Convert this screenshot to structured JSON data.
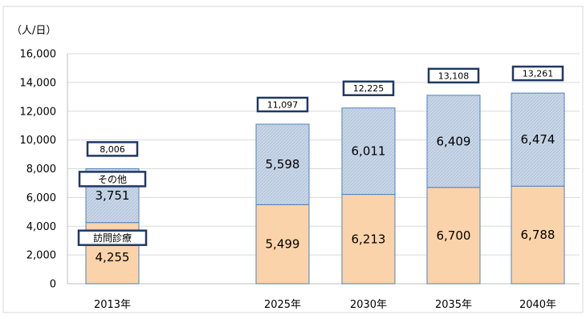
{
  "chart_data": {
    "type": "bar",
    "stacked": true,
    "unit_label": "（人/日）",
    "categories": [
      "2013年",
      "2025年",
      "2030年",
      "2035年",
      "2040年"
    ],
    "series": [
      {
        "name": "訪問診療",
        "values": [
          4255,
          5499,
          6213,
          6700,
          6788
        ],
        "value_labels": [
          "4,255",
          "5,499",
          "6,213",
          "6,700",
          "6,788"
        ],
        "color": "#fbd3aa"
      },
      {
        "name": "その他",
        "values": [
          3751,
          5598,
          6011,
          6409,
          6474
        ],
        "value_labels": [
          "3,751",
          "5,598",
          "6,011",
          "6,409",
          "6,474"
        ],
        "color": "#c6d5e6"
      }
    ],
    "totals": [
      8006,
      11097,
      12225,
      13108,
      13261
    ],
    "total_labels": [
      "8,006",
      "11,097",
      "12,225",
      "13,108",
      "13,261"
    ],
    "ylim": [
      0,
      16000
    ],
    "yticks": [
      0,
      2000,
      4000,
      6000,
      8000,
      10000,
      12000,
      14000,
      16000
    ],
    "ytick_labels": [
      "0",
      "2,000",
      "4,000",
      "6,000",
      "8,000",
      "10,000",
      "12,000",
      "14,000",
      "16,000"
    ],
    "grid": true,
    "legend_placement": "inline labels on first bar",
    "colors": {
      "box_border": "#1f3864",
      "grid": "#d9d9d9",
      "bar_border": "#4f81bd"
    }
  }
}
